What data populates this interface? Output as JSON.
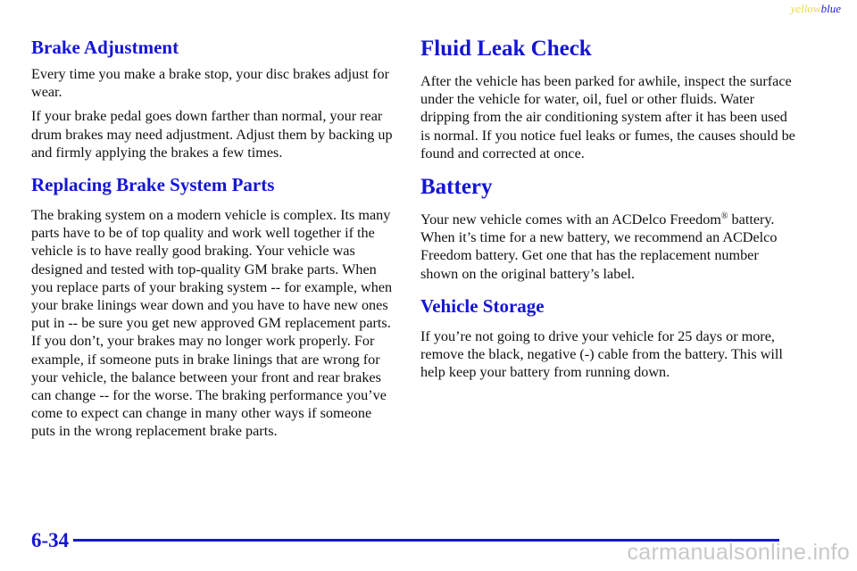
{
  "header": {
    "tag_yellow": "yellow",
    "tag_blue": "blue"
  },
  "left": {
    "brake_adjustment": {
      "heading": "Brake Adjustment",
      "p1": "Every time you make a brake stop, your disc brakes adjust for wear.",
      "p2": "If your brake pedal goes down farther than normal, your rear drum brakes may need adjustment. Adjust them by backing up and firmly applying the brakes a few times."
    },
    "replacing_parts": {
      "heading": "Replacing Brake System Parts",
      "p1": "The braking system on a modern vehicle is complex. Its many parts have to be of top quality and work well together if the vehicle is to have really good braking. Your vehicle was designed and tested with top-quality GM brake parts. When you replace parts of your braking system -- for example, when your brake linings wear down and you have to have new ones put in -- be sure you get new approved GM replacement parts. If you don’t, your brakes may no longer work properly. For example, if someone puts in brake linings that are wrong for your vehicle, the balance between your front and rear brakes can change -- for the worse. The braking performance you’ve come to expect can change in many other ways if someone puts in the wrong replacement brake parts."
    }
  },
  "right": {
    "fluid_leak": {
      "heading": "Fluid Leak Check",
      "p1": "After the vehicle has been parked for awhile, inspect the surface under the vehicle for water, oil, fuel or other fluids. Water dripping from the air conditioning system after it has been used is normal. If you notice fuel leaks or fumes, the causes should be found and corrected at once."
    },
    "battery": {
      "heading": "Battery",
      "p1_start": "Your new vehicle comes with an ACDelco Freedom",
      "registered": "®",
      "p1_end": " battery. When it’s time for a new battery, we recommend an ACDelco Freedom battery. Get one that has the replacement number shown on the original battery’s label."
    },
    "storage": {
      "heading": "Vehicle Storage",
      "p1": "If you’re not going to drive your vehicle for 25 days or more, remove the black, negative (-) cable from the battery. This will help keep your battery from running down."
    }
  },
  "footer": {
    "page_number": "6-34",
    "watermark": "carmanualsonline.info"
  },
  "colors": {
    "heading_blue": "#1515d6",
    "tag_yellow": "#e6d84a",
    "watermark_gray": "#c9c9c9"
  }
}
